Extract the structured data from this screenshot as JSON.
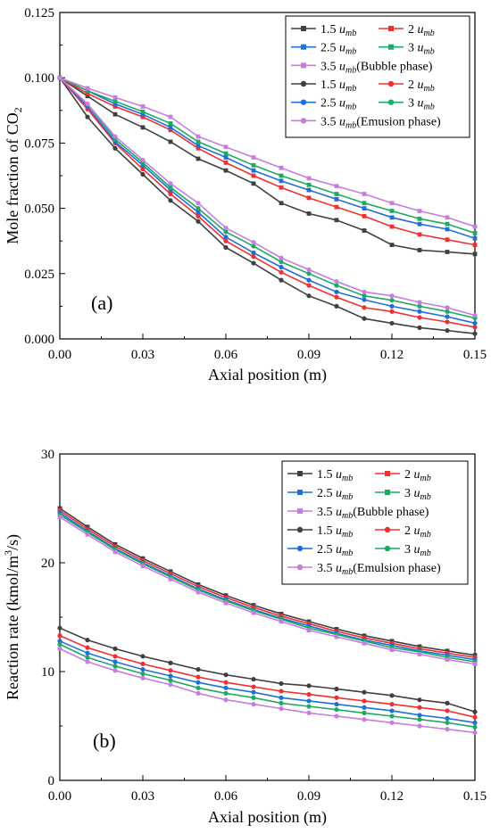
{
  "chart_data": [
    {
      "type": "line",
      "panel_label": "(a)",
      "xlabel": "Axial position (m)",
      "ylabel_main": "Mole fraction of CO",
      "ylabel_sub": "2",
      "xlim": [
        0.0,
        0.15
      ],
      "ylim": [
        0.0,
        0.125
      ],
      "x_ticks": [
        "0.00",
        "0.03",
        "0.06",
        "0.09",
        "0.12",
        "0.15"
      ],
      "y_ticks": [
        "0.000",
        "0.025",
        "0.050",
        "0.075",
        "0.100",
        "0.125"
      ],
      "x": [
        0.0,
        0.01,
        0.02,
        0.03,
        0.04,
        0.05,
        0.06,
        0.07,
        0.08,
        0.09,
        0.1,
        0.11,
        0.12,
        0.13,
        0.14,
        0.15
      ],
      "legend": [
        [
          "1.5 ",
          "u",
          "mb",
          ""
        ],
        [
          "2 ",
          "u",
          "mb",
          ""
        ],
        [
          "2.5 ",
          "u",
          "mb",
          ""
        ],
        [
          "3 ",
          "u",
          "mb",
          ""
        ],
        [
          "3.5 ",
          "u",
          "mb",
          "(Bubble phase)"
        ],
        [
          "1.5 ",
          "u",
          "mb",
          ""
        ],
        [
          "2 ",
          "u",
          "mb",
          ""
        ],
        [
          "2.5 ",
          "u",
          "mb",
          ""
        ],
        [
          "3 ",
          "u",
          "mb",
          ""
        ],
        [
          "3.5 ",
          "u",
          "mb",
          "(Emusion phase)"
        ]
      ],
      "series": [
        {
          "color": "#404040",
          "marker": "square",
          "values": [
            0.1,
            0.093,
            0.086,
            0.081,
            0.0755,
            0.069,
            0.0645,
            0.0595,
            0.052,
            0.048,
            0.0455,
            0.0415,
            0.036,
            0.034,
            0.0333,
            0.0325
          ]
        },
        {
          "color": "#f03030",
          "marker": "square",
          "values": [
            0.1,
            0.094,
            0.089,
            0.085,
            0.08,
            0.073,
            0.0675,
            0.0625,
            0.058,
            0.054,
            0.0505,
            0.047,
            0.043,
            0.04,
            0.038,
            0.036
          ]
        },
        {
          "color": "#1f6fd8",
          "marker": "square",
          "values": [
            0.1,
            0.095,
            0.09,
            0.086,
            0.081,
            0.074,
            0.0695,
            0.0645,
            0.0605,
            0.057,
            0.0535,
            0.05,
            0.0465,
            0.044,
            0.042,
            0.0385
          ]
        },
        {
          "color": "#1daa62",
          "marker": "square",
          "values": [
            0.1,
            0.095,
            0.091,
            0.087,
            0.0825,
            0.0755,
            0.071,
            0.0665,
            0.0625,
            0.059,
            0.0555,
            0.052,
            0.049,
            0.046,
            0.044,
            0.0405
          ]
        },
        {
          "color": "#c77ce0",
          "marker": "square",
          "values": [
            0.1,
            0.096,
            0.0925,
            0.089,
            0.085,
            0.0775,
            0.0735,
            0.0695,
            0.0655,
            0.0615,
            0.0585,
            0.0555,
            0.052,
            0.049,
            0.0465,
            0.043
          ]
        },
        {
          "color": "#404040",
          "marker": "circle",
          "values": [
            0.1,
            0.085,
            0.073,
            0.063,
            0.053,
            0.045,
            0.035,
            0.029,
            0.0225,
            0.0165,
            0.0125,
            0.0078,
            0.006,
            0.0043,
            0.0032,
            0.002
          ]
        },
        {
          "color": "#f03030",
          "marker": "circle",
          "values": [
            0.1,
            0.088,
            0.075,
            0.065,
            0.0555,
            0.047,
            0.0375,
            0.0315,
            0.0255,
            0.0205,
            0.016,
            0.012,
            0.0105,
            0.0082,
            0.0065,
            0.0045
          ]
        },
        {
          "color": "#1f6fd8",
          "marker": "circle",
          "values": [
            0.1,
            0.089,
            0.0755,
            0.0665,
            0.057,
            0.0485,
            0.039,
            0.033,
            0.0275,
            0.0225,
            0.018,
            0.015,
            0.0125,
            0.0105,
            0.0085,
            0.006
          ]
        },
        {
          "color": "#1daa62",
          "marker": "circle",
          "values": [
            0.1,
            0.09,
            0.0765,
            0.0675,
            0.058,
            0.05,
            0.041,
            0.0355,
            0.0295,
            0.025,
            0.0205,
            0.0165,
            0.0148,
            0.0125,
            0.0105,
            0.008
          ]
        },
        {
          "color": "#c77ce0",
          "marker": "circle",
          "values": [
            0.1,
            0.09,
            0.0775,
            0.0685,
            0.0595,
            0.052,
            0.0425,
            0.037,
            0.031,
            0.0265,
            0.022,
            0.018,
            0.0165,
            0.014,
            0.012,
            0.009
          ]
        }
      ]
    },
    {
      "type": "line",
      "panel_label": "(b)",
      "xlabel": "Axial position (m)",
      "ylabel_main": "Reaction rate (kmol/m",
      "ylabel_sup": "3",
      "ylabel_tail": "/s)",
      "xlim": [
        0.0,
        0.15
      ],
      "ylim": [
        0,
        30
      ],
      "x_ticks": [
        "0.00",
        "0.03",
        "0.06",
        "0.09",
        "0.12",
        "0.15"
      ],
      "y_ticks": [
        "0",
        "10",
        "20",
        "30"
      ],
      "x": [
        0.0,
        0.01,
        0.02,
        0.03,
        0.04,
        0.05,
        0.06,
        0.07,
        0.08,
        0.09,
        0.1,
        0.11,
        0.12,
        0.13,
        0.14,
        0.15
      ],
      "legend": [
        [
          "1.5 ",
          "u",
          "mb",
          ""
        ],
        [
          "2 ",
          "u",
          "mb",
          ""
        ],
        [
          "2.5 ",
          "u",
          "mb",
          ""
        ],
        [
          "3 ",
          "u",
          "mb",
          ""
        ],
        [
          "3.5 ",
          "u",
          "mb",
          "(Bubble phase)"
        ],
        [
          "1.5 ",
          "u",
          "mb",
          ""
        ],
        [
          "2 ",
          "u",
          "mb",
          ""
        ],
        [
          "2.5 ",
          "u",
          "mb",
          ""
        ],
        [
          "3 ",
          "u",
          "mb",
          ""
        ],
        [
          "3.5 ",
          "u",
          "mb",
          "(Emulsion phase)"
        ]
      ],
      "series": [
        {
          "color": "#404040",
          "marker": "square",
          "values": [
            25.0,
            23.3,
            21.7,
            20.4,
            19.2,
            18.0,
            17.0,
            16.1,
            15.3,
            14.6,
            13.9,
            13.3,
            12.8,
            12.3,
            11.9,
            11.5
          ]
        },
        {
          "color": "#f03030",
          "marker": "square",
          "values": [
            24.8,
            23.1,
            21.5,
            20.2,
            19.0,
            17.8,
            16.8,
            15.9,
            15.1,
            14.4,
            13.7,
            13.1,
            12.6,
            12.1,
            11.7,
            11.3
          ]
        },
        {
          "color": "#1f6fd8",
          "marker": "square",
          "values": [
            24.6,
            22.9,
            21.3,
            20.0,
            18.8,
            17.6,
            16.6,
            15.7,
            14.9,
            14.2,
            13.5,
            12.9,
            12.4,
            11.9,
            11.5,
            11.1
          ]
        },
        {
          "color": "#1daa62",
          "marker": "square",
          "values": [
            24.4,
            22.8,
            21.2,
            19.9,
            18.7,
            17.5,
            16.5,
            15.6,
            14.8,
            14.0,
            13.4,
            12.8,
            12.2,
            11.8,
            11.3,
            10.9
          ]
        },
        {
          "color": "#c77ce0",
          "marker": "square",
          "values": [
            24.2,
            22.6,
            21.0,
            19.7,
            18.5,
            17.3,
            16.3,
            15.4,
            14.6,
            13.8,
            13.2,
            12.6,
            12.0,
            11.6,
            11.1,
            10.7
          ]
        },
        {
          "color": "#404040",
          "marker": "circle",
          "values": [
            14.0,
            12.9,
            12.1,
            11.4,
            10.8,
            10.2,
            9.7,
            9.3,
            8.9,
            8.7,
            8.4,
            8.1,
            7.8,
            7.4,
            7.1,
            6.3
          ]
        },
        {
          "color": "#f03030",
          "marker": "circle",
          "values": [
            13.3,
            12.2,
            11.4,
            10.7,
            10.1,
            9.5,
            9.0,
            8.6,
            8.2,
            7.9,
            7.6,
            7.3,
            7.0,
            6.7,
            6.4,
            5.8
          ]
        },
        {
          "color": "#1f6fd8",
          "marker": "circle",
          "values": [
            12.8,
            11.7,
            10.9,
            10.2,
            9.6,
            9.0,
            8.5,
            8.1,
            7.6,
            7.3,
            7.0,
            6.7,
            6.4,
            6.0,
            5.7,
            5.3
          ]
        },
        {
          "color": "#1daa62",
          "marker": "circle",
          "values": [
            12.5,
            11.3,
            10.5,
            9.8,
            9.2,
            8.5,
            8.0,
            7.6,
            7.1,
            6.8,
            6.5,
            6.2,
            5.9,
            5.6,
            5.3,
            4.9
          ]
        },
        {
          "color": "#c77ce0",
          "marker": "circle",
          "values": [
            12.1,
            10.9,
            10.1,
            9.4,
            8.8,
            8.0,
            7.4,
            7.0,
            6.6,
            6.2,
            5.9,
            5.6,
            5.3,
            5.0,
            4.7,
            4.4
          ]
        }
      ]
    }
  ]
}
